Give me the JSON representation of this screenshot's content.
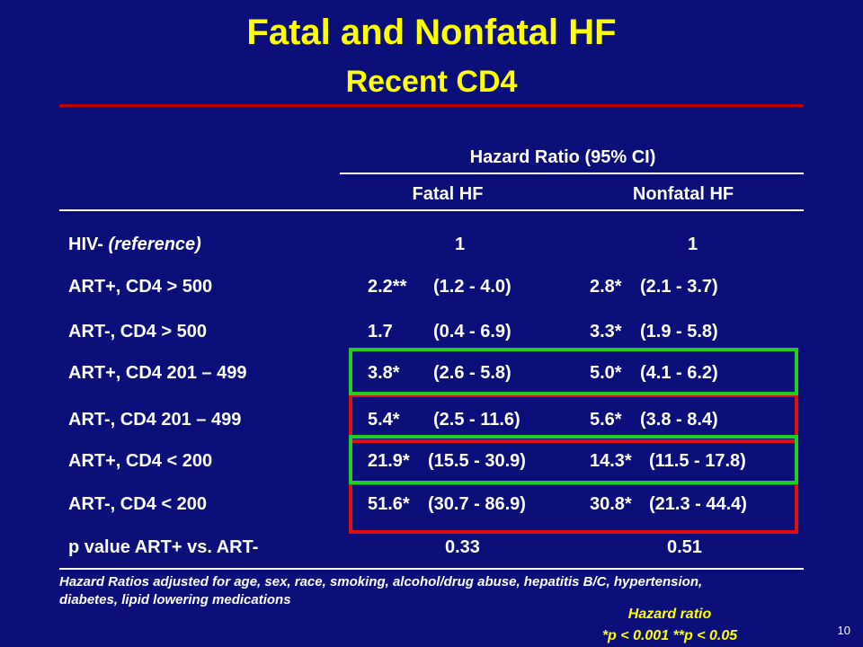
{
  "title": "Fatal and Nonfatal HF",
  "subtitle": "Recent CD4",
  "table": {
    "group_header": "Hazard Ratio (95% CI)",
    "col1": "Fatal HF",
    "col2": "Nonfatal HF",
    "rows": [
      {
        "label_main": "HIV- ",
        "label_em": "(reference)",
        "f_hr": "1",
        "f_ci": "",
        "n_hr": "1",
        "n_ci": ""
      },
      {
        "label_main": "ART+, CD4 > 500",
        "label_em": "",
        "f_hr": "2.2**",
        "f_ci": "(1.2 - 4.0)",
        "n_hr": "2.8*",
        "n_ci": "(2.1 - 3.7)"
      },
      {
        "label_main": "ART-, CD4 > 500",
        "label_em": "",
        "f_hr": "1.7",
        "f_ci": "(0.4 - 6.9)",
        "n_hr": "3.3*",
        "n_ci": "(1.9 - 5.8)"
      },
      {
        "label_main": "ART+, CD4 201 – 499",
        "label_em": "",
        "f_hr": "3.8*",
        "f_ci": "(2.6 - 5.8)",
        "n_hr": "5.0*",
        "n_ci": "(4.1 - 6.2)"
      },
      {
        "label_main": "ART-, CD4 201 – 499",
        "label_em": "",
        "f_hr": "5.4*",
        "f_ci": "(2.5 - 11.6)",
        "n_hr": "5.6*",
        "n_ci": "(3.8 - 8.4)"
      },
      {
        "label_main": "ART+, CD4 < 200",
        "label_em": "",
        "f_hr": "21.9*",
        "f_ci": "(15.5 - 30.9)",
        "n_hr": "14.3*",
        "n_ci": "(11.5 - 17.8)"
      },
      {
        "label_main": "ART-, CD4 < 200",
        "label_em": "",
        "f_hr": "51.6*",
        "f_ci": "(30.7 - 86.9)",
        "n_hr": "30.8*",
        "n_ci": "(21.3 - 44.4)"
      }
    ],
    "pvalue": {
      "label": "p value ART+ vs. ART-",
      "fatal": "0.33",
      "nonfatal": "0.51"
    }
  },
  "footnote": "Hazard Ratios adjusted for age, sex, race, smoking, alcohol/drug abuse, hepatitis B/C, hypertension, diabetes, lipid lowering medications",
  "legend": {
    "line1": "Hazard ratio",
    "line2": "*p < 0.001 **p < 0.05"
  },
  "slide_number": "10",
  "colors": {
    "background": "#0b0f7a",
    "title": "#ffff00",
    "highlight_green": "#22cc22",
    "highlight_red": "#dd1111"
  }
}
